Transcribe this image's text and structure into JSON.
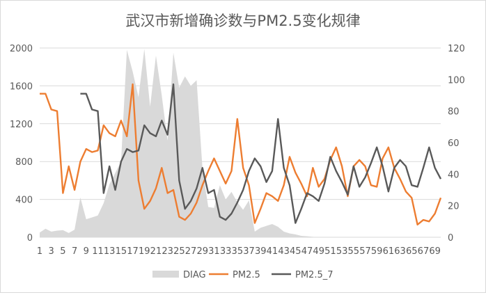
{
  "chart_data": {
    "type": "area+line",
    "title": "武汉市新增确诊数与PM2.5变化规律",
    "x": [
      1,
      2,
      3,
      4,
      5,
      6,
      7,
      8,
      9,
      10,
      11,
      12,
      13,
      14,
      15,
      16,
      17,
      18,
      19,
      20,
      21,
      22,
      23,
      24,
      25,
      26,
      27,
      28,
      29,
      30,
      31,
      32,
      33,
      34,
      35,
      36,
      37,
      38,
      39,
      40,
      41,
      42,
      43,
      44,
      45,
      46,
      47,
      48,
      49,
      50,
      51,
      52,
      53,
      54,
      55,
      56,
      57,
      58,
      59,
      60,
      61,
      62,
      63,
      64,
      65,
      66,
      67,
      68,
      69,
      70
    ],
    "x_tick_labels": [
      "1",
      "3",
      "5",
      "7",
      "9",
      "11",
      "13",
      "15",
      "17",
      "19",
      "21",
      "23",
      "25",
      "27",
      "29",
      "31",
      "33",
      "35",
      "37",
      "39",
      "41",
      "43",
      "45",
      "47",
      "49",
      "51",
      "53",
      "55",
      "57",
      "59",
      "61",
      "63",
      "65",
      "67",
      "69"
    ],
    "y_left": {
      "ticks": [
        "0",
        "400",
        "800",
        "1200",
        "1600",
        "2000"
      ],
      "range": [
        0,
        2000
      ]
    },
    "y_right": {
      "ticks": [
        "0",
        "20",
        "40",
        "60",
        "80",
        "100",
        "120"
      ],
      "range": [
        0,
        120
      ]
    },
    "series": [
      {
        "name": "DIAG",
        "kind": "area",
        "axis": "left",
        "color": "#d9d9d9",
        "values": [
          50,
          90,
          60,
          70,
          75,
          45,
          80,
          420,
          190,
          210,
          230,
          360,
          560,
          680,
          800,
          1980,
          1750,
          1480,
          1990,
          1380,
          1920,
          1500,
          1020,
          1950,
          1580,
          1700,
          1600,
          1660,
          730,
          320,
          310,
          550,
          400,
          480,
          370,
          290,
          390,
          60,
          100,
          120,
          140,
          110,
          60,
          40,
          30,
          15,
          10,
          5,
          2,
          1,
          0,
          0,
          0,
          0,
          0,
          0,
          0,
          0,
          0,
          0,
          0,
          0,
          0,
          0,
          0,
          0,
          0,
          0,
          0,
          0
        ]
      },
      {
        "name": "PM2.5",
        "kind": "line",
        "axis": "right",
        "color": "#ed7d31",
        "values": [
          91,
          91,
          81,
          80,
          28,
          45,
          30,
          48,
          56,
          54,
          55,
          71,
          66,
          64,
          74,
          64,
          97,
          36,
          18,
          23,
          31,
          44,
          28,
          30,
          13,
          11,
          15,
          22,
          33,
          42,
          50,
          42,
          34,
          42,
          75,
          44,
          33,
          9,
          18,
          28,
          26,
          23,
          33,
          51,
          41,
          34,
          26,
          44,
          32,
          37,
          49,
          57,
          45,
          26,
          45,
          49,
          45,
          33,
          32,
          50,
          57,
          44,
          37,
          29,
          25,
          8,
          11,
          10,
          15,
          25
        ]
      },
      {
        "name": "PM2.5_7",
        "kind": "line",
        "axis": "right",
        "color": "#595959",
        "values": [
          null,
          null,
          null,
          null,
          null,
          null,
          null,
          91,
          91,
          81,
          80,
          28,
          45,
          30,
          48,
          56,
          54,
          55,
          71,
          66,
          64,
          74,
          65,
          97,
          36,
          18,
          23,
          31,
          44,
          28,
          30,
          13,
          11,
          15,
          22,
          30,
          42,
          50,
          45,
          35,
          42,
          75,
          44,
          33,
          9,
          18,
          28,
          26,
          23,
          34,
          51,
          42,
          35,
          27,
          45,
          32,
          38,
          47,
          57,
          45,
          29,
          44,
          49,
          45,
          33,
          32,
          44,
          57,
          44,
          37
        ]
      }
    ],
    "legend": {
      "position": "bottom",
      "entries": [
        "DIAG",
        "PM2.5",
        "PM2.5_7"
      ]
    },
    "grid": "horizontal"
  }
}
